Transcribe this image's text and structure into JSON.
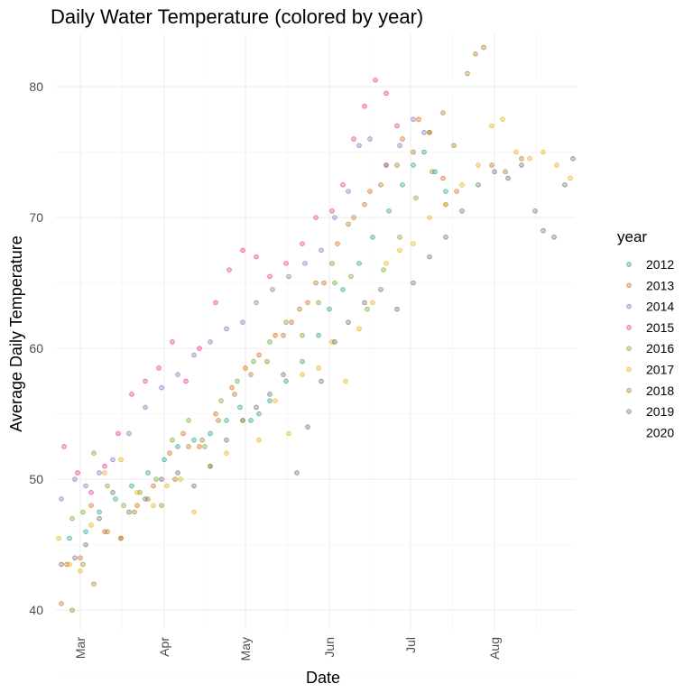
{
  "chart_data": {
    "type": "scatter",
    "title": "Daily Water Temperature (colored by year)",
    "xlabel": "Date",
    "ylabel": "Average Daily Temperature",
    "x_type": "date (month-day)",
    "xlim": [
      "02-20",
      "08-31"
    ],
    "ylim": [
      38.5,
      84
    ],
    "x_ticks": [
      {
        "date": "03-01",
        "label": "Mar"
      },
      {
        "date": "04-01",
        "label": "Apr"
      },
      {
        "date": "05-01",
        "label": "May"
      },
      {
        "date": "06-01",
        "label": "Jun"
      },
      {
        "date": "07-01",
        "label": "Jul"
      },
      {
        "date": "08-01",
        "label": "Aug"
      }
    ],
    "y_ticks": [
      40,
      50,
      60,
      70,
      80
    ],
    "grid": true,
    "legend": {
      "title": "year",
      "placement": "right"
    },
    "series": [
      {
        "name": "2012",
        "color": "#1b9e77",
        "points": [
          [
            "02-25",
            45.5
          ],
          [
            "03-03",
            46.0
          ],
          [
            "03-08",
            47.5
          ],
          [
            "03-14",
            48.5
          ],
          [
            "03-20",
            49.5
          ],
          [
            "03-26",
            50.5
          ],
          [
            "04-01",
            51.5
          ],
          [
            "04-06",
            52.5
          ],
          [
            "04-12",
            53.0
          ],
          [
            "04-18",
            53.5
          ],
          [
            "04-24",
            54.5
          ],
          [
            "04-29",
            55.5
          ],
          [
            "05-03",
            54.5
          ],
          [
            "05-06",
            55.0
          ],
          [
            "05-10",
            56.0
          ],
          [
            "05-16",
            57.5
          ],
          [
            "05-22",
            59.0
          ],
          [
            "05-28",
            61.0
          ],
          [
            "06-01",
            63.0
          ],
          [
            "06-06",
            64.5
          ],
          [
            "06-12",
            66.5
          ],
          [
            "06-17",
            68.5
          ],
          [
            "06-23",
            70.5
          ],
          [
            "06-28",
            72.5
          ],
          [
            "07-02",
            74.0
          ],
          [
            "07-06",
            75.0
          ],
          [
            "07-10",
            73.5
          ],
          [
            "07-14",
            72.0
          ]
        ]
      },
      {
        "name": "2013",
        "color": "#d95f02",
        "points": [
          [
            "02-24",
            43.5
          ],
          [
            "03-01",
            44.0
          ],
          [
            "03-05",
            48.0
          ],
          [
            "03-10",
            46.0
          ],
          [
            "03-16",
            45.5
          ],
          [
            "03-22",
            48.0
          ],
          [
            "03-28",
            49.5
          ],
          [
            "04-03",
            52.0
          ],
          [
            "04-08",
            53.5
          ],
          [
            "04-14",
            52.5
          ],
          [
            "04-20",
            55.0
          ],
          [
            "04-26",
            57.0
          ],
          [
            "05-01",
            58.5
          ],
          [
            "05-06",
            59.5
          ],
          [
            "05-12",
            61.0
          ],
          [
            "05-18",
            62.0
          ],
          [
            "05-24",
            63.5
          ],
          [
            "05-30",
            65.0
          ],
          [
            "06-04",
            68.0
          ],
          [
            "06-10",
            70.0
          ],
          [
            "06-16",
            72.0
          ],
          [
            "06-22",
            74.0
          ],
          [
            "06-28",
            76.0
          ],
          [
            "07-04",
            77.5
          ],
          [
            "07-08",
            76.5
          ],
          [
            "07-13",
            73.0
          ],
          [
            "07-18",
            72.0
          ]
        ]
      },
      {
        "name": "2014",
        "color": "#7570b3",
        "points": [
          [
            "02-22",
            48.5
          ],
          [
            "02-27",
            50.0
          ],
          [
            "03-03",
            49.5
          ],
          [
            "03-08",
            50.5
          ],
          [
            "03-13",
            51.5
          ],
          [
            "03-19",
            53.5
          ],
          [
            "03-25",
            55.5
          ],
          [
            "03-31",
            57.0
          ],
          [
            "04-06",
            58.0
          ],
          [
            "04-12",
            59.5
          ],
          [
            "04-18",
            60.5
          ],
          [
            "04-24",
            61.5
          ],
          [
            "04-30",
            62.0
          ],
          [
            "05-05",
            63.5
          ],
          [
            "05-11",
            64.5
          ],
          [
            "05-17",
            65.5
          ],
          [
            "05-23",
            66.5
          ],
          [
            "05-29",
            67.5
          ],
          [
            "06-03",
            70.0
          ],
          [
            "06-08",
            72.0
          ],
          [
            "06-12",
            75.5
          ],
          [
            "06-16",
            76.0
          ],
          [
            "06-22",
            74.0
          ],
          [
            "06-27",
            75.5
          ],
          [
            "07-02",
            77.5
          ],
          [
            "07-06",
            76.5
          ]
        ]
      },
      {
        "name": "2015",
        "color": "#e7298a",
        "points": [
          [
            "02-23",
            52.5
          ],
          [
            "02-28",
            50.5
          ],
          [
            "03-05",
            49.0
          ],
          [
            "03-10",
            51.0
          ],
          [
            "03-15",
            53.5
          ],
          [
            "03-20",
            56.5
          ],
          [
            "03-25",
            57.5
          ],
          [
            "03-30",
            58.5
          ],
          [
            "04-04",
            60.5
          ],
          [
            "04-09",
            57.5
          ],
          [
            "04-14",
            60.0
          ],
          [
            "04-20",
            63.5
          ],
          [
            "04-25",
            66.0
          ],
          [
            "04-30",
            67.5
          ],
          [
            "05-05",
            67.0
          ],
          [
            "05-10",
            65.5
          ],
          [
            "05-16",
            66.5
          ],
          [
            "05-22",
            68.0
          ],
          [
            "05-27",
            70.0
          ],
          [
            "06-02",
            70.5
          ],
          [
            "06-06",
            72.5
          ],
          [
            "06-10",
            76.0
          ],
          [
            "06-14",
            78.5
          ],
          [
            "06-18",
            80.5
          ],
          [
            "06-22",
            79.5
          ],
          [
            "06-26",
            77.0
          ]
        ]
      },
      {
        "name": "2016",
        "color": "#66a61e",
        "points": [
          [
            "02-26",
            47.0
          ],
          [
            "03-02",
            47.5
          ],
          [
            "03-06",
            52.0
          ],
          [
            "03-11",
            49.5
          ],
          [
            "03-17",
            48.0
          ],
          [
            "03-23",
            49.0
          ],
          [
            "03-29",
            50.0
          ],
          [
            "04-04",
            53.0
          ],
          [
            "04-10",
            54.5
          ],
          [
            "04-16",
            52.5
          ],
          [
            "04-22",
            56.0
          ],
          [
            "04-28",
            57.5
          ],
          [
            "05-04",
            59.0
          ],
          [
            "05-10",
            60.5
          ],
          [
            "05-16",
            62.0
          ],
          [
            "05-22",
            61.0
          ],
          [
            "05-28",
            63.5
          ],
          [
            "06-03",
            65.0
          ],
          [
            "06-09",
            65.5
          ],
          [
            "06-15",
            63.0
          ],
          [
            "06-21",
            66.0
          ],
          [
            "06-27",
            68.5
          ],
          [
            "07-03",
            71.5
          ],
          [
            "07-09",
            73.5
          ],
          [
            "07-14",
            71.0
          ]
        ]
      },
      {
        "name": "2017",
        "color": "#e6ab02",
        "points": [
          [
            "02-21",
            45.5
          ],
          [
            "02-25",
            43.5
          ],
          [
            "03-01",
            43.0
          ],
          [
            "03-05",
            46.5
          ],
          [
            "03-10",
            50.5
          ],
          [
            "03-16",
            51.5
          ],
          [
            "03-22",
            49.0
          ],
          [
            "03-28",
            48.0
          ],
          [
            "04-02",
            49.5
          ],
          [
            "04-07",
            50.0
          ],
          [
            "04-12",
            47.5
          ],
          [
            "04-18",
            51.0
          ],
          [
            "04-24",
            52.0
          ],
          [
            "04-30",
            54.5
          ],
          [
            "05-06",
            53.0
          ],
          [
            "05-12",
            56.0
          ],
          [
            "05-17",
            53.5
          ],
          [
            "05-22",
            58.0
          ],
          [
            "05-28",
            58.5
          ],
          [
            "06-02",
            60.5
          ],
          [
            "06-07",
            57.5
          ],
          [
            "06-12",
            61.5
          ],
          [
            "06-17",
            63.5
          ],
          [
            "06-22",
            66.5
          ],
          [
            "06-27",
            67.5
          ],
          [
            "07-02",
            68.0
          ],
          [
            "07-08",
            70.0
          ],
          [
            "07-14",
            71.0
          ],
          [
            "07-20",
            72.5
          ],
          [
            "07-26",
            74.0
          ],
          [
            "07-31",
            77.0
          ],
          [
            "08-04",
            77.5
          ],
          [
            "08-09",
            75.0
          ],
          [
            "08-14",
            74.5
          ],
          [
            "08-19",
            75.0
          ],
          [
            "08-24",
            74.0
          ],
          [
            "08-29",
            73.0
          ]
        ]
      },
      {
        "name": "2018",
        "color": "#a6761d",
        "points": [
          [
            "02-22",
            40.5
          ],
          [
            "02-26",
            40.0
          ],
          [
            "03-02",
            43.5
          ],
          [
            "03-06",
            42.0
          ],
          [
            "03-11",
            46.0
          ],
          [
            "03-16",
            45.5
          ],
          [
            "03-21",
            47.5
          ],
          [
            "03-26",
            48.5
          ],
          [
            "03-31",
            48.0
          ],
          [
            "04-05",
            50.0
          ],
          [
            "04-10",
            52.5
          ],
          [
            "04-15",
            53.0
          ],
          [
            "04-21",
            54.5
          ],
          [
            "04-27",
            56.5
          ],
          [
            "05-03",
            58.0
          ],
          [
            "05-09",
            59.0
          ],
          [
            "05-15",
            61.0
          ],
          [
            "05-21",
            63.0
          ],
          [
            "05-27",
            65.0
          ],
          [
            "06-02",
            66.5
          ],
          [
            "06-08",
            69.5
          ],
          [
            "06-14",
            71.0
          ],
          [
            "06-20",
            72.5
          ],
          [
            "06-26",
            74.0
          ],
          [
            "07-02",
            75.0
          ],
          [
            "07-08",
            76.5
          ],
          [
            "07-13",
            78.0
          ],
          [
            "07-17",
            75.5
          ],
          [
            "07-22",
            81.0
          ],
          [
            "07-25",
            82.5
          ],
          [
            "07-28",
            83.0
          ],
          [
            "07-31",
            74.0
          ],
          [
            "08-05",
            73.5
          ],
          [
            "08-11",
            74.5
          ]
        ]
      },
      {
        "name": "2019",
        "color": "#666666",
        "points": [
          [
            "02-22",
            43.5
          ],
          [
            "02-27",
            44.0
          ],
          [
            "03-03",
            45.0
          ],
          [
            "03-08",
            47.0
          ],
          [
            "03-13",
            49.0
          ],
          [
            "03-19",
            47.5
          ],
          [
            "03-25",
            48.5
          ],
          [
            "03-31",
            50.0
          ],
          [
            "04-06",
            50.5
          ],
          [
            "04-12",
            49.5
          ],
          [
            "04-18",
            51.0
          ],
          [
            "04-24",
            53.0
          ],
          [
            "04-30",
            54.5
          ],
          [
            "05-05",
            55.5
          ],
          [
            "05-10",
            56.5
          ],
          [
            "05-15",
            58.0
          ],
          [
            "05-20",
            50.5
          ],
          [
            "05-24",
            54.0
          ],
          [
            "05-29",
            57.5
          ],
          [
            "06-03",
            60.5
          ],
          [
            "06-08",
            62.0
          ],
          [
            "06-14",
            63.5
          ],
          [
            "06-20",
            64.5
          ],
          [
            "06-26",
            63.0
          ],
          [
            "07-02",
            65.0
          ],
          [
            "07-08",
            67.0
          ],
          [
            "07-14",
            68.5
          ],
          [
            "07-20",
            70.5
          ],
          [
            "07-26",
            72.5
          ],
          [
            "08-01",
            73.5
          ],
          [
            "08-06",
            73.0
          ],
          [
            "08-11",
            74.0
          ],
          [
            "08-16",
            70.5
          ],
          [
            "08-19",
            69.0
          ],
          [
            "08-23",
            68.5
          ],
          [
            "08-27",
            72.5
          ],
          [
            "08-30",
            74.5
          ]
        ]
      },
      {
        "name": "2020",
        "color": "#ffffff",
        "points": []
      }
    ]
  }
}
